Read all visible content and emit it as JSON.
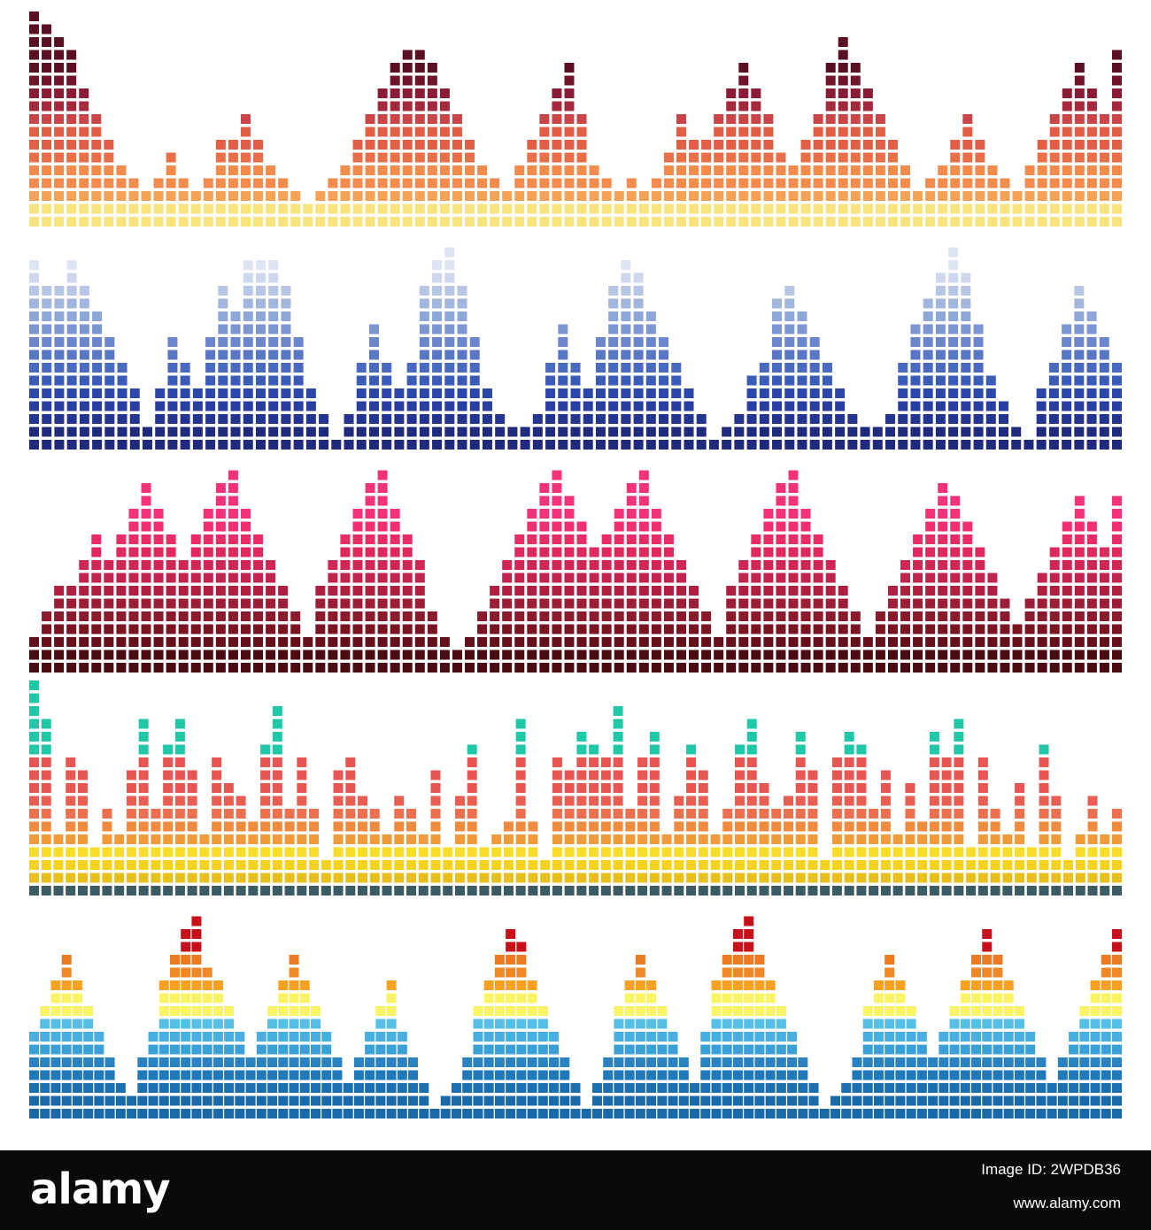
{
  "footer": {
    "logo": "alamy",
    "image_id": "Image ID: 2WPDB36",
    "site": "www.alamy.com"
  },
  "equalizers": [
    {
      "name": "equalizer-warm-sunset",
      "level_colors": [
        "#f8e37c",
        "#f8e37c",
        "#f5a257",
        "#f28b4c",
        "#f28b4c",
        "#e96f48",
        "#e45d45",
        "#e45d45",
        "#c94548",
        "#a5293d",
        "#8b1b35",
        "#6f1429",
        "#5a0f22",
        "#5a0f22",
        "#5a0f22",
        "#5a0f22"
      ],
      "heights": [
        16,
        15,
        14,
        13,
        10,
        8,
        6,
        4,
        3,
        2,
        3,
        5,
        3,
        2,
        3,
        6,
        6,
        8,
        6,
        4,
        3,
        2,
        1,
        2,
        3,
        4,
        6,
        8,
        10,
        12,
        13,
        13,
        12,
        10,
        8,
        6,
        4,
        3,
        2,
        4,
        6,
        8,
        10,
        12,
        8,
        4,
        3,
        2,
        3,
        2,
        3,
        5,
        8,
        6,
        6,
        8,
        10,
        12,
        10,
        8,
        5,
        4,
        6,
        8,
        12,
        14,
        12,
        10,
        8,
        6,
        4,
        2,
        3,
        4,
        6,
        8,
        6,
        4,
        3,
        2,
        4,
        6,
        8,
        10,
        12,
        10,
        8,
        13
      ]
    },
    {
      "name": "equalizer-blue-ocean",
      "level_colors": [
        "#1f2a7c",
        "#1f2a7c",
        "#233590",
        "#283ea0",
        "#2c47ac",
        "#3b5bb8",
        "#4a69c0",
        "#5a77c6",
        "#6b86cc",
        "#7c96d2",
        "#8ea6d8",
        "#a2b5de",
        "#b8c6e6",
        "#cdd7ee",
        "#dde4f3",
        "#dde4f3"
      ],
      "heights": [
        14,
        12,
        12,
        14,
        12,
        10,
        8,
        6,
        4,
        1,
        4,
        8,
        6,
        4,
        8,
        12,
        10,
        14,
        14,
        14,
        12,
        8,
        4,
        2,
        0,
        2,
        6,
        9,
        6,
        4,
        6,
        12,
        14,
        15,
        12,
        8,
        4,
        2,
        1,
        1,
        2,
        6,
        9,
        6,
        4,
        8,
        12,
        14,
        13,
        10,
        8,
        6,
        4,
        2,
        0,
        1,
        2,
        5,
        6,
        11,
        12,
        10,
        8,
        6,
        4,
        2,
        1,
        1,
        2,
        6,
        9,
        11,
        13,
        15,
        13,
        9,
        5,
        3,
        1,
        0,
        4,
        6,
        9,
        12,
        10,
        8,
        6
      ]
    },
    {
      "name": "equalizer-crimson",
      "level_colors": [
        "#4a0b12",
        "#4a0b12",
        "#65101a",
        "#7a1422",
        "#8b1a2c",
        "#9c1d35",
        "#b01f40",
        "#c0234b",
        "#d02654",
        "#dd295c",
        "#e82c66",
        "#f02f70",
        "#f4327a",
        "#f4327a",
        "#f4327a",
        "#f4327a"
      ],
      "heights": [
        2,
        4,
        6,
        6,
        8,
        10,
        8,
        10,
        12,
        14,
        12,
        10,
        8,
        10,
        12,
        14,
        15,
        12,
        10,
        8,
        6,
        4,
        2,
        6,
        8,
        10,
        12,
        14,
        15,
        12,
        10,
        8,
        4,
        2,
        1,
        2,
        4,
        6,
        8,
        10,
        12,
        14,
        15,
        13,
        11,
        9,
        10,
        12,
        14,
        15,
        12,
        10,
        8,
        6,
        4,
        2,
        6,
        8,
        10,
        12,
        14,
        15,
        12,
        10,
        8,
        6,
        4,
        2,
        4,
        6,
        8,
        10,
        12,
        14,
        13,
        11,
        9,
        7,
        5,
        3,
        5,
        7,
        9,
        11,
        13,
        11,
        9,
        13
      ]
    },
    {
      "name": "equalizer-teal-orange",
      "level_colors": [
        "#3c5a64",
        "#e8c01e",
        "#f5d21d",
        "#f8dc2a",
        "#f19a3b",
        "#ef8a3f",
        "#ec6f4f",
        "#ea5d52",
        "#e85654",
        "#e85654",
        "#e85654",
        "#1fc8a6",
        "#1fc8a6",
        "#1fc8a6",
        "#1fc8a6",
        "#1fc8a6"
      ],
      "heights": [
        16,
        13,
        4,
        10,
        9,
        3,
        6,
        4,
        9,
        13,
        6,
        11,
        13,
        9,
        4,
        10,
        8,
        7,
        5,
        11,
        14,
        6,
        10,
        6,
        2,
        9,
        10,
        7,
        6,
        4,
        7,
        6,
        4,
        9,
        3,
        7,
        11,
        3,
        4,
        5,
        13,
        5,
        2,
        10,
        9,
        12,
        11,
        10,
        14,
        6,
        10,
        12,
        4,
        7,
        11,
        9,
        4,
        6,
        11,
        13,
        8,
        6,
        7,
        12,
        9,
        2,
        10,
        12,
        11,
        6,
        9,
        4,
        8,
        5,
        12,
        10,
        13,
        3,
        10,
        6,
        4,
        8,
        3,
        11,
        7,
        2,
        4,
        7,
        4,
        6
      ]
    },
    {
      "name": "equalizer-blue-yellow",
      "level_colors": [
        "#1a6aaa",
        "#1a6aaa",
        "#1c70b0",
        "#1f78b8",
        "#2b82c2",
        "#3ca0d8",
        "#48afe0",
        "#55bfe6",
        "#f8f466",
        "#f8f466",
        "#f8a020",
        "#f08828",
        "#eb7a22",
        "#c8101a",
        "#c8101a",
        "#c8101a"
      ],
      "heights": [
        6,
        8,
        10,
        12,
        10,
        8,
        6,
        4,
        2,
        1,
        4,
        6,
        10,
        12,
        14,
        15,
        11,
        10,
        8,
        6,
        4,
        6,
        8,
        10,
        12,
        10,
        8,
        6,
        4,
        2,
        4,
        6,
        8,
        10,
        6,
        4,
        2,
        0,
        1,
        2,
        4,
        8,
        10,
        12,
        14,
        13,
        10,
        8,
        6,
        4,
        2,
        0,
        2,
        4,
        8,
        10,
        12,
        10,
        8,
        6,
        4,
        2,
        6,
        10,
        12,
        14,
        15,
        12,
        10,
        8,
        6,
        4,
        2,
        0,
        1,
        2,
        4,
        8,
        10,
        12,
        10,
        8,
        6,
        4,
        6,
        8,
        10,
        12,
        14,
        12,
        10,
        8,
        6,
        4,
        2,
        4,
        6,
        8,
        10,
        12,
        14
      ]
    }
  ]
}
